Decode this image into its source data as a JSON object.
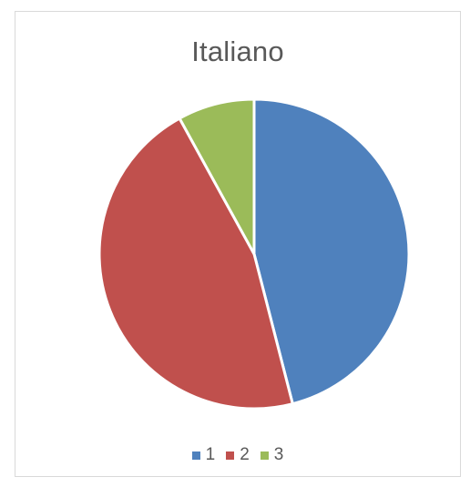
{
  "chart_data": {
    "type": "pie",
    "title": "Italiano",
    "categories": [
      "1",
      "2",
      "3"
    ],
    "values": [
      46,
      46,
      8
    ],
    "colors": [
      "#4f81bd",
      "#c0504d",
      "#9bbb59"
    ],
    "legend_position": "bottom"
  }
}
